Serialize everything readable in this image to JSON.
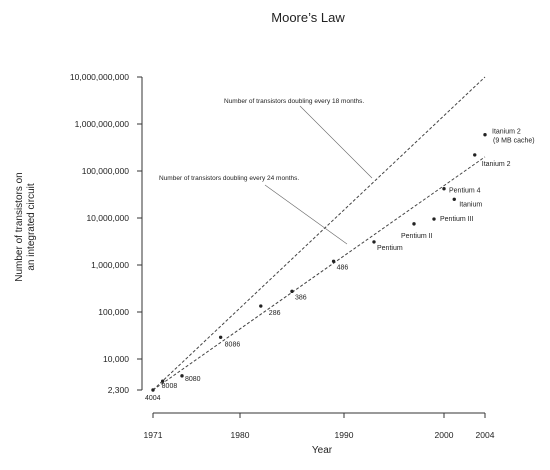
{
  "chart_data": {
    "type": "scatter",
    "title": "Moore’s Law",
    "xlabel": "Year",
    "ylabel": "Number of transistors on an integrated circuit",
    "ylabel_lines": [
      "Number of transistors on",
      "an integrated circuit"
    ],
    "y_scale": "log",
    "xlim": [
      1971,
      2004
    ],
    "ylim": [
      2300,
      10000000000
    ],
    "x_ticks": [
      1971,
      1980,
      1990,
      2000,
      2004
    ],
    "y_ticks": [
      {
        "value": 2300,
        "label": "2,300"
      },
      {
        "value": 10000,
        "label": "10,000"
      },
      {
        "value": 100000,
        "label": "100,000"
      },
      {
        "value": 1000000,
        "label": "1,000,000"
      },
      {
        "value": 10000000,
        "label": "10,000,000"
      },
      {
        "value": 100000000,
        "label": "100,000,000"
      },
      {
        "value": 1000000000,
        "label": "1,000,000,000"
      },
      {
        "value": 10000000000,
        "label": "10,000,000,000"
      }
    ],
    "grid": false,
    "series": [
      {
        "points": [
          {
            "label": "4004",
            "x": 1971,
            "y": 2300
          },
          {
            "label": "8008",
            "x": 1972,
            "y": 3500
          },
          {
            "label": "8080",
            "x": 1974,
            "y": 4500
          },
          {
            "label": "8086",
            "x": 1978,
            "y": 29000
          },
          {
            "label": "286",
            "x": 1982,
            "y": 134000
          },
          {
            "label": "386",
            "x": 1985,
            "y": 275000
          },
          {
            "label": "486",
            "x": 1989,
            "y": 1200000
          },
          {
            "label": "Pentium",
            "x": 1993,
            "y": 3100000
          },
          {
            "label": "Pentium II",
            "x": 1997,
            "y": 7500000
          },
          {
            "label": "Pentium III",
            "x": 1999,
            "y": 9500000
          },
          {
            "label": "Pentium 4",
            "x": 2000,
            "y": 42000000
          },
          {
            "label": "Itanium",
            "x": 2001,
            "y": 25000000
          },
          {
            "label": "Itanium 2",
            "x": 2003,
            "y": 220000000
          },
          {
            "label": "Itanium 2",
            "label2": "(9 MB cache)",
            "x": 2004,
            "y": 592000000
          }
        ]
      }
    ],
    "trend_lines": [
      {
        "text": "Number of transistors doubling every 18 months.",
        "from": {
          "x": 1971,
          "y": 2300
        },
        "to": {
          "x": 2004,
          "y": 10000000000
        }
      },
      {
        "text": "Number of transistors doubling every 24 months.",
        "from": {
          "x": 1971,
          "y": 2300
        },
        "to": {
          "x": 2004,
          "y": 200000000
        }
      }
    ]
  }
}
